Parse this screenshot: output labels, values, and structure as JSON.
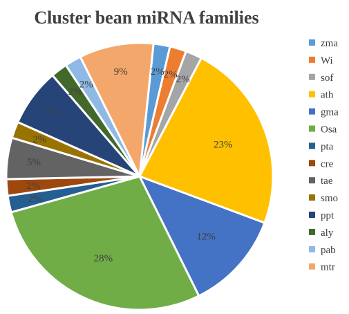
{
  "chart_data": {
    "type": "pie",
    "title": "Cluster bean miRNA families",
    "legend_position": "right",
    "slices": [
      {
        "name": "zma",
        "value": 2,
        "label": "2%",
        "color": "#5B9BD5"
      },
      {
        "name": "Wi",
        "value": 2,
        "label": "2%",
        "color": "#ED7D31"
      },
      {
        "name": "sof",
        "value": 2,
        "label": "2%",
        "color": "#A5A5A5"
      },
      {
        "name": "ath",
        "value": 23,
        "label": "23%",
        "color": "#FFC000"
      },
      {
        "name": "gma",
        "value": 12,
        "label": "12%",
        "color": "#4472C4"
      },
      {
        "name": "Osa",
        "value": 28,
        "label": "28%",
        "color": "#70AD47"
      },
      {
        "name": "pta",
        "value": 2,
        "label": "2%",
        "color": "#255E91"
      },
      {
        "name": "cre",
        "value": 2,
        "label": "2%",
        "color": "#9E480E"
      },
      {
        "name": "tae",
        "value": 5,
        "label": "5%",
        "color": "#636363"
      },
      {
        "name": "smo",
        "value": 2,
        "label": "2%",
        "color": "#997300"
      },
      {
        "name": "ppt",
        "value": 7,
        "label": "7%",
        "color": "#264478"
      },
      {
        "name": "aly",
        "value": 2,
        "label": "2%",
        "color": "#43682B"
      },
      {
        "name": "pab",
        "value": 2,
        "label": "2%",
        "color": "#8FB9E5"
      },
      {
        "name": "mtr",
        "value": 9,
        "label": "9%",
        "color": "#F4A76B"
      }
    ]
  }
}
